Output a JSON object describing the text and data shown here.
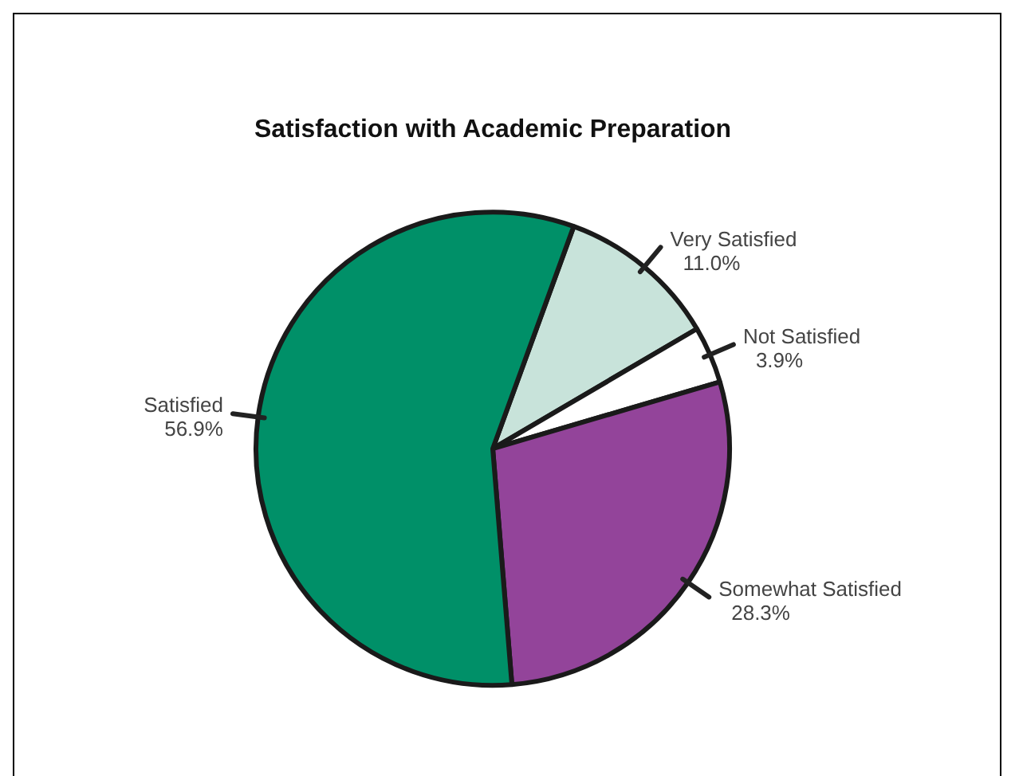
{
  "chart_data": {
    "type": "pie",
    "title": "Satisfaction with Academic Preparation",
    "categories": [
      "Very Satisfied",
      "Not Satisfied",
      "Somewhat Satisfied",
      "Satisfied"
    ],
    "values": [
      11.0,
      3.9,
      28.3,
      56.9
    ],
    "value_labels": [
      "11.0%",
      "3.9%",
      "28.3%",
      "56.9%"
    ],
    "colors": [
      "#c8e3da",
      "#ffffff",
      "#93449a",
      "#009068"
    ],
    "legend": false
  }
}
